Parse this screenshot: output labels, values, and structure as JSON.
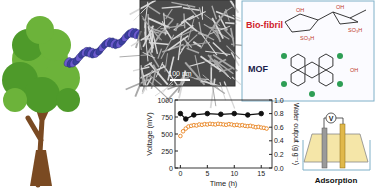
{
  "diagram": {
    "scale_bar": "100 nm",
    "fibril_label": "Bio-fibril",
    "mof_label": "MOF",
    "device_label": "Adsorption",
    "meter_label": "V",
    "structure_labels": [
      "OH",
      "OH",
      "SO₃H",
      "SO₃H",
      "OH"
    ]
  },
  "chart_data": {
    "type": "line",
    "xlabel": "Time (h)",
    "ylabel": "Voltage (mV)",
    "y2label": "Water output (g g⁻¹)",
    "xlim": [
      -1,
      17
    ],
    "xticks": [
      0,
      5,
      10,
      15
    ],
    "ylim": [
      0,
      1000
    ],
    "yticks": [
      0,
      250,
      500,
      750,
      1000
    ],
    "y2lim": [
      0,
      1.0
    ],
    "y2ticks": [
      {
        "value": 0,
        "label": "0.0"
      },
      {
        "value": 0.2,
        "label": "0.2"
      },
      {
        "value": 0.4,
        "label": "0.4"
      },
      {
        "value": 0.6,
        "label": "0.6"
      },
      {
        "value": 0.8,
        "label": "0.8"
      },
      {
        "value": 1.0,
        "label": "1.0"
      }
    ],
    "series": [
      {
        "color": "#e8821e",
        "marker": "hollow-circle",
        "line_style": "none",
        "x": [
          0,
          0.5,
          1,
          1.5,
          2,
          2.5,
          3,
          3.5,
          4,
          4.5,
          5,
          5.5,
          6,
          6.5,
          7,
          7.5,
          8,
          8.5,
          9,
          9.5,
          10,
          10.5,
          11,
          11.5,
          12,
          12.5,
          13,
          13.5,
          14,
          14.5,
          15,
          15.5,
          16
        ],
        "values": [
          470,
          540,
          580,
          610,
          620,
          630,
          625,
          640,
          635,
          645,
          640,
          650,
          645,
          640,
          650,
          645,
          640,
          635,
          645,
          640,
          630,
          635,
          625,
          630,
          620,
          615,
          620,
          610,
          600,
          605,
          595,
          590,
          580
        ]
      },
      {
        "color": "#111111",
        "marker": "circle",
        "line_style": "solid",
        "axis": "y2",
        "x": [
          0,
          1,
          2.5,
          5,
          7.5,
          10,
          12.5,
          15
        ],
        "values": [
          0.8,
          0.72,
          0.78,
          0.8,
          0.79,
          0.8,
          0.78,
          0.8
        ]
      }
    ]
  }
}
